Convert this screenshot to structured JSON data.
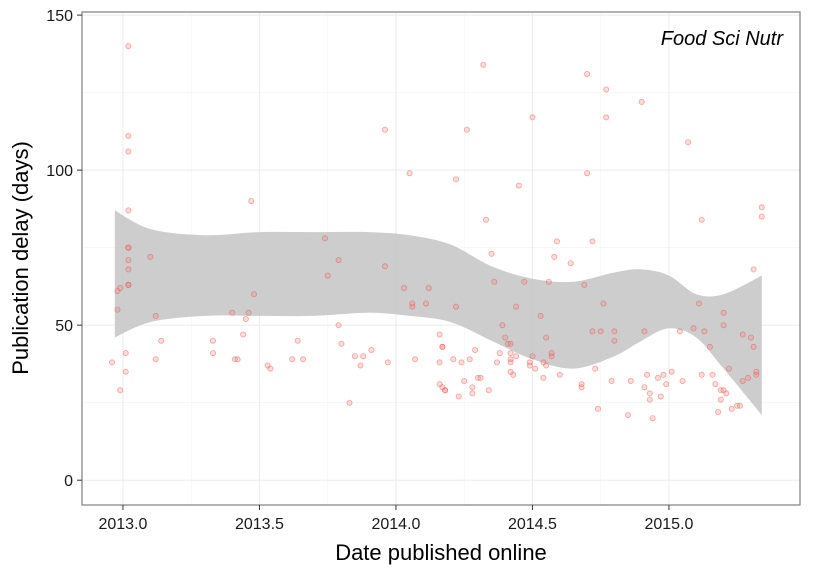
{
  "chart_data": {
    "type": "scatter",
    "annotation": "Food Sci Nutr",
    "xlabel": "Date published online",
    "ylabel": "Publication delay (days)",
    "xlim": [
      2012.85,
      2015.48
    ],
    "ylim": [
      -8,
      151
    ],
    "xticks": [
      2013.0,
      2013.5,
      2014.0,
      2014.5,
      2015.0
    ],
    "xtick_labels": [
      "2013.0",
      "2013.5",
      "2014.0",
      "2014.5",
      "2015.0"
    ],
    "yticks": [
      0,
      50,
      100,
      150
    ],
    "ytick_labels": [
      "0",
      "50",
      "100",
      "150"
    ],
    "grid": true,
    "colors": {
      "points": "#f08080",
      "ribbon": "#c8c8c8",
      "grid": "#ebebeb",
      "panel_border": "#7f7f7f"
    },
    "series": [
      {
        "type": "scatter",
        "points": [
          [
            2012.96,
            38
          ],
          [
            2012.98,
            61
          ],
          [
            2012.98,
            55
          ],
          [
            2012.99,
            29
          ],
          [
            2012.99,
            62
          ],
          [
            2013.02,
            140
          ],
          [
            2013.02,
            111
          ],
          [
            2013.02,
            106
          ],
          [
            2013.02,
            87
          ],
          [
            2013.02,
            75
          ],
          [
            2013.02,
            75
          ],
          [
            2013.02,
            71
          ],
          [
            2013.02,
            68
          ],
          [
            2013.02,
            63
          ],
          [
            2013.02,
            63
          ],
          [
            2013.01,
            41
          ],
          [
            2013.01,
            35
          ],
          [
            2013.1,
            72
          ],
          [
            2013.12,
            53
          ],
          [
            2013.12,
            39
          ],
          [
            2013.14,
            45
          ],
          [
            2013.33,
            45
          ],
          [
            2013.33,
            41
          ],
          [
            2013.4,
            54
          ],
          [
            2013.41,
            39
          ],
          [
            2013.42,
            39
          ],
          [
            2013.44,
            47
          ],
          [
            2013.45,
            52
          ],
          [
            2013.46,
            54
          ],
          [
            2013.47,
            90
          ],
          [
            2013.48,
            60
          ],
          [
            2013.53,
            37
          ],
          [
            2013.54,
            36
          ],
          [
            2013.62,
            39
          ],
          [
            2013.64,
            45
          ],
          [
            2013.66,
            39
          ],
          [
            2013.74,
            78
          ],
          [
            2013.75,
            66
          ],
          [
            2013.79,
            71
          ],
          [
            2013.79,
            50
          ],
          [
            2013.8,
            44
          ],
          [
            2013.83,
            25
          ],
          [
            2013.85,
            40
          ],
          [
            2013.87,
            37
          ],
          [
            2013.88,
            40
          ],
          [
            2013.91,
            42
          ],
          [
            2013.96,
            113
          ],
          [
            2013.96,
            69
          ],
          [
            2013.97,
            38
          ],
          [
            2014.03,
            62
          ],
          [
            2014.05,
            99
          ],
          [
            2014.06,
            56
          ],
          [
            2014.06,
            57
          ],
          [
            2014.07,
            39
          ],
          [
            2014.11,
            57
          ],
          [
            2014.12,
            62
          ],
          [
            2014.16,
            47
          ],
          [
            2014.16,
            38
          ],
          [
            2014.17,
            43
          ],
          [
            2014.17,
            43
          ],
          [
            2014.16,
            31
          ],
          [
            2014.17,
            30
          ],
          [
            2014.18,
            29
          ],
          [
            2014.18,
            29
          ],
          [
            2014.21,
            39
          ],
          [
            2014.22,
            97
          ],
          [
            2014.22,
            56
          ],
          [
            2014.23,
            27
          ],
          [
            2014.24,
            38
          ],
          [
            2014.25,
            32
          ],
          [
            2014.26,
            113
          ],
          [
            2014.27,
            39
          ],
          [
            2014.28,
            28
          ],
          [
            2014.28,
            30
          ],
          [
            2014.29,
            42
          ],
          [
            2014.3,
            33
          ],
          [
            2014.31,
            33
          ],
          [
            2014.32,
            134
          ],
          [
            2014.33,
            84
          ],
          [
            2014.34,
            29
          ],
          [
            2014.35,
            73
          ],
          [
            2014.36,
            64
          ],
          [
            2014.37,
            38
          ],
          [
            2014.38,
            41
          ],
          [
            2014.39,
            50
          ],
          [
            2014.4,
            46
          ],
          [
            2014.41,
            44
          ],
          [
            2014.42,
            44
          ],
          [
            2014.42,
            41
          ],
          [
            2014.42,
            39
          ],
          [
            2014.42,
            38
          ],
          [
            2014.42,
            35
          ],
          [
            2014.43,
            34
          ],
          [
            2014.44,
            56
          ],
          [
            2014.44,
            40
          ],
          [
            2014.45,
            95
          ],
          [
            2014.47,
            64
          ],
          [
            2014.49,
            38
          ],
          [
            2014.49,
            37
          ],
          [
            2014.5,
            117
          ],
          [
            2014.5,
            40
          ],
          [
            2014.51,
            36
          ],
          [
            2014.53,
            53
          ],
          [
            2014.54,
            38
          ],
          [
            2014.54,
            33
          ],
          [
            2014.55,
            37
          ],
          [
            2014.55,
            46
          ],
          [
            2014.56,
            64
          ],
          [
            2014.57,
            40
          ],
          [
            2014.57,
            41
          ],
          [
            2014.58,
            72
          ],
          [
            2014.59,
            77
          ],
          [
            2014.6,
            34
          ],
          [
            2014.64,
            70
          ],
          [
            2014.68,
            30
          ],
          [
            2014.68,
            31
          ],
          [
            2014.69,
            63
          ],
          [
            2014.7,
            99
          ],
          [
            2014.7,
            131
          ],
          [
            2014.72,
            48
          ],
          [
            2014.72,
            77
          ],
          [
            2014.73,
            36
          ],
          [
            2014.74,
            23
          ],
          [
            2014.75,
            48
          ],
          [
            2014.76,
            57
          ],
          [
            2014.77,
            126
          ],
          [
            2014.77,
            117
          ],
          [
            2014.79,
            32
          ],
          [
            2014.8,
            48
          ],
          [
            2014.8,
            45
          ],
          [
            2014.85,
            21
          ],
          [
            2014.86,
            32
          ],
          [
            2014.9,
            122
          ],
          [
            2014.91,
            48
          ],
          [
            2014.91,
            30
          ],
          [
            2014.92,
            34
          ],
          [
            2014.93,
            26
          ],
          [
            2014.93,
            28
          ],
          [
            2014.94,
            20
          ],
          [
            2014.96,
            33
          ],
          [
            2014.97,
            27
          ],
          [
            2014.98,
            34
          ],
          [
            2014.99,
            31
          ],
          [
            2015.01,
            35
          ],
          [
            2015.04,
            48
          ],
          [
            2015.05,
            32
          ],
          [
            2015.07,
            109
          ],
          [
            2015.09,
            49
          ],
          [
            2015.11,
            57
          ],
          [
            2015.12,
            84
          ],
          [
            2015.12,
            34
          ],
          [
            2015.13,
            48
          ],
          [
            2015.15,
            43
          ],
          [
            2015.16,
            34
          ],
          [
            2015.17,
            31
          ],
          [
            2015.18,
            22
          ],
          [
            2015.19,
            26
          ],
          [
            2015.19,
            29
          ],
          [
            2015.2,
            29
          ],
          [
            2015.21,
            28
          ],
          [
            2015.2,
            54
          ],
          [
            2015.2,
            50
          ],
          [
            2015.22,
            36
          ],
          [
            2015.23,
            23
          ],
          [
            2015.25,
            24
          ],
          [
            2015.26,
            24
          ],
          [
            2015.27,
            32
          ],
          [
            2015.27,
            47
          ],
          [
            2015.29,
            33
          ],
          [
            2015.3,
            46
          ],
          [
            2015.31,
            68
          ],
          [
            2015.31,
            43
          ],
          [
            2015.32,
            34
          ],
          [
            2015.32,
            35
          ],
          [
            2015.34,
            88
          ],
          [
            2015.34,
            85
          ]
        ]
      },
      {
        "type": "ribbon",
        "x": [
          2012.97,
          2013.1,
          2013.3,
          2013.5,
          2013.7,
          2013.9,
          2014.05,
          2014.2,
          2014.35,
          2014.5,
          2014.65,
          2014.8,
          2014.9,
          2015.0,
          2015.1,
          2015.2,
          2015.34
        ],
        "lower": [
          46,
          51,
          53,
          53,
          53,
          54,
          53,
          51,
          45,
          39,
          36,
          40,
          45,
          49,
          46,
          36,
          21
        ],
        "upper": [
          87,
          81,
          79,
          80,
          80,
          80,
          79,
          76,
          69,
          65,
          64,
          67,
          68,
          66,
          60,
          60,
          66
        ]
      }
    ]
  }
}
